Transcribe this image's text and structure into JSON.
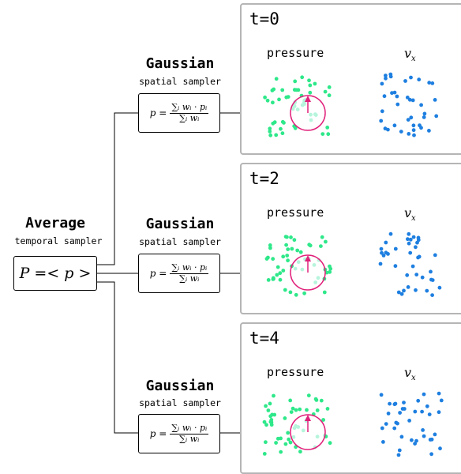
{
  "average": {
    "title": "Average",
    "subtitle": "temporal sampler",
    "formula": "P =< p >"
  },
  "samplers": [
    {
      "title": "Gaussian",
      "subtitle": "spatial sampler",
      "numerator": "∑ᵢ wᵢ · pᵢ",
      "denominator": "∑ᵢ wᵢ",
      "lhs": "p ="
    },
    {
      "title": "Gaussian",
      "subtitle": "spatial sampler",
      "numerator": "∑ᵢ wᵢ · pᵢ",
      "denominator": "∑ᵢ wᵢ",
      "lhs": "p ="
    },
    {
      "title": "Gaussian",
      "subtitle": "spatial sampler",
      "numerator": "∑ᵢ wᵢ · pᵢ",
      "denominator": "∑ᵢ wᵢ",
      "lhs": "p ="
    }
  ],
  "panels": [
    {
      "time": "t=0",
      "pressure_label": "pressure",
      "vx_label": "v",
      "vx_sub": "x"
    },
    {
      "time": "t=2",
      "pressure_label": "pressure",
      "vx_label": "v",
      "vx_sub": "x"
    },
    {
      "time": "t=4",
      "pressure_label": "pressure",
      "vx_label": "v",
      "vx_sub": "x"
    }
  ],
  "colors": {
    "pressure_dot": "#2ee88a",
    "inside_dot": "#b6f5dc",
    "vx_dot": "#1e7fe0",
    "circle": "#e0207a",
    "panel_border": "#b5b5b5"
  }
}
